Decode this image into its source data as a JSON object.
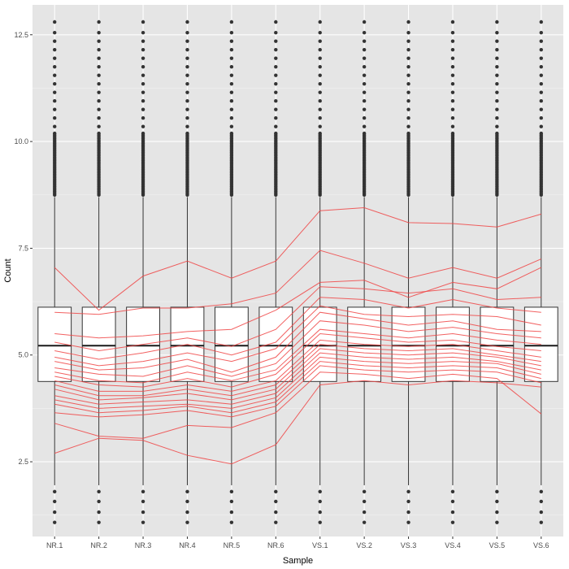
{
  "chart_data": {
    "type": "boxplot",
    "title": "",
    "xlabel": "Sample",
    "ylabel": "Count",
    "grid": true,
    "ylim": [
      0.75,
      13.2
    ],
    "y_ticks": [
      2.5,
      5.0,
      7.5,
      10.0,
      12.5
    ],
    "y_tick_labels": [
      "2.5",
      "5.0",
      "7.5",
      "10.0",
      "12.5"
    ],
    "categories": [
      "NR.1",
      "NR.2",
      "NR.3",
      "NR.4",
      "NR.5",
      "NR.6",
      "VS.1",
      "VS.2",
      "VS.3",
      "VS.4",
      "VS.5",
      "VS.6"
    ],
    "boxes": [
      {
        "q1": 4.38,
        "median": 5.22,
        "q3": 6.12,
        "whisker_low": 1.95,
        "whisker_high": 8.7
      },
      {
        "q1": 4.38,
        "median": 5.22,
        "q3": 6.12,
        "whisker_low": 1.95,
        "whisker_high": 8.7
      },
      {
        "q1": 4.38,
        "median": 5.22,
        "q3": 6.12,
        "whisker_low": 1.95,
        "whisker_high": 8.7
      },
      {
        "q1": 4.38,
        "median": 5.22,
        "q3": 6.12,
        "whisker_low": 1.95,
        "whisker_high": 8.7
      },
      {
        "q1": 4.38,
        "median": 5.22,
        "q3": 6.12,
        "whisker_low": 1.95,
        "whisker_high": 8.7
      },
      {
        "q1": 4.38,
        "median": 5.22,
        "q3": 6.12,
        "whisker_low": 1.95,
        "whisker_high": 8.7
      },
      {
        "q1": 4.38,
        "median": 5.22,
        "q3": 6.12,
        "whisker_low": 1.95,
        "whisker_high": 8.7
      },
      {
        "q1": 4.38,
        "median": 5.22,
        "q3": 6.12,
        "whisker_low": 1.95,
        "whisker_high": 8.7
      },
      {
        "q1": 4.38,
        "median": 5.22,
        "q3": 6.12,
        "whisker_low": 1.95,
        "whisker_high": 8.7
      },
      {
        "q1": 4.38,
        "median": 5.22,
        "q3": 6.12,
        "whisker_low": 1.95,
        "whisker_high": 8.7
      },
      {
        "q1": 4.38,
        "median": 5.22,
        "q3": 6.12,
        "whisker_low": 1.95,
        "whisker_high": 8.7
      },
      {
        "q1": 4.38,
        "median": 5.22,
        "q3": 6.12,
        "whisker_low": 1.95,
        "whisker_high": 8.7
      }
    ],
    "outliers_high_min": 8.75,
    "outliers_high_dense_to": 10.2,
    "outliers_high": [
      10.35,
      10.55,
      10.75,
      10.95,
      11.15,
      11.35,
      11.55,
      11.75,
      11.95,
      12.15,
      12.35,
      12.55,
      12.8
    ],
    "outliers_low": [
      1.08,
      1.32,
      1.57,
      1.8
    ],
    "lines": [
      [
        7.05,
        6.05,
        6.85,
        7.2,
        6.8,
        7.2,
        8.38,
        8.45,
        8.1,
        8.08,
        8.0,
        8.3
      ],
      [
        6.0,
        5.95,
        6.1,
        6.1,
        6.2,
        6.45,
        7.45,
        7.15,
        6.8,
        7.05,
        6.8,
        7.25
      ],
      [
        5.5,
        5.4,
        5.45,
        5.55,
        5.6,
        6.05,
        6.7,
        6.75,
        6.35,
        6.7,
        6.55,
        7.05
      ],
      [
        5.3,
        5.1,
        5.25,
        5.4,
        5.2,
        5.6,
        6.6,
        6.55,
        6.45,
        6.55,
        6.3,
        6.35
      ],
      [
        5.1,
        4.9,
        5.05,
        5.25,
        5.0,
        5.3,
        6.35,
        6.3,
        6.1,
        6.3,
        6.1,
        6.0
      ],
      [
        4.95,
        4.75,
        4.85,
        5.05,
        4.85,
        5.15,
        6.15,
        5.95,
        5.9,
        5.95,
        5.9,
        5.7
      ],
      [
        4.85,
        4.65,
        4.7,
        4.9,
        4.6,
        4.95,
        6.0,
        5.85,
        5.7,
        5.8,
        5.6,
        5.55
      ],
      [
        4.7,
        4.55,
        4.5,
        4.75,
        4.5,
        4.8,
        5.8,
        5.7,
        5.55,
        5.65,
        5.5,
        5.4
      ],
      [
        4.6,
        4.4,
        4.35,
        4.6,
        4.4,
        4.65,
        5.6,
        5.5,
        5.4,
        5.5,
        5.35,
        5.25
      ],
      [
        4.5,
        4.3,
        4.25,
        4.45,
        4.25,
        4.55,
        5.5,
        5.4,
        5.3,
        5.35,
        5.2,
        5.1
      ],
      [
        4.4,
        4.15,
        4.15,
        4.3,
        4.15,
        4.4,
        5.35,
        5.25,
        5.2,
        5.25,
        5.1,
        4.95
      ],
      [
        4.3,
        4.05,
        4.05,
        4.2,
        4.05,
        4.3,
        5.25,
        5.15,
        5.1,
        5.15,
        5.0,
        4.85
      ],
      [
        4.2,
        3.95,
        4.0,
        4.1,
        3.95,
        4.2,
        5.15,
        5.05,
        5.0,
        5.05,
        4.95,
        4.75
      ],
      [
        4.05,
        3.85,
        3.9,
        3.95,
        3.85,
        4.1,
        5.05,
        4.95,
        4.9,
        4.95,
        4.85,
        4.65
      ],
      [
        3.95,
        3.75,
        3.8,
        3.85,
        3.75,
        4.0,
        4.95,
        4.85,
        4.8,
        4.85,
        4.8,
        4.55
      ],
      [
        3.85,
        3.65,
        3.7,
        3.8,
        3.65,
        3.9,
        4.85,
        4.75,
        4.7,
        4.75,
        4.7,
        4.45
      ],
      [
        3.65,
        3.55,
        3.6,
        3.7,
        3.55,
        3.8,
        4.75,
        4.65,
        4.6,
        4.65,
        4.6,
        4.35
      ],
      [
        3.4,
        3.1,
        3.05,
        3.35,
        3.3,
        3.65,
        4.6,
        4.55,
        4.45,
        4.55,
        4.45,
        3.62
      ],
      [
        2.7,
        3.05,
        3.0,
        2.65,
        2.45,
        2.9,
        4.3,
        4.4,
        4.3,
        4.4,
        4.35,
        4.25
      ]
    ],
    "colors": {
      "panel": "#e5e5e5",
      "grid_major": "#ffffff",
      "grid_minor": "#f2f2f2",
      "line": "#f04545",
      "box_fill": "#ffffff",
      "box_stroke": "#333333",
      "point": "#333333"
    }
  }
}
